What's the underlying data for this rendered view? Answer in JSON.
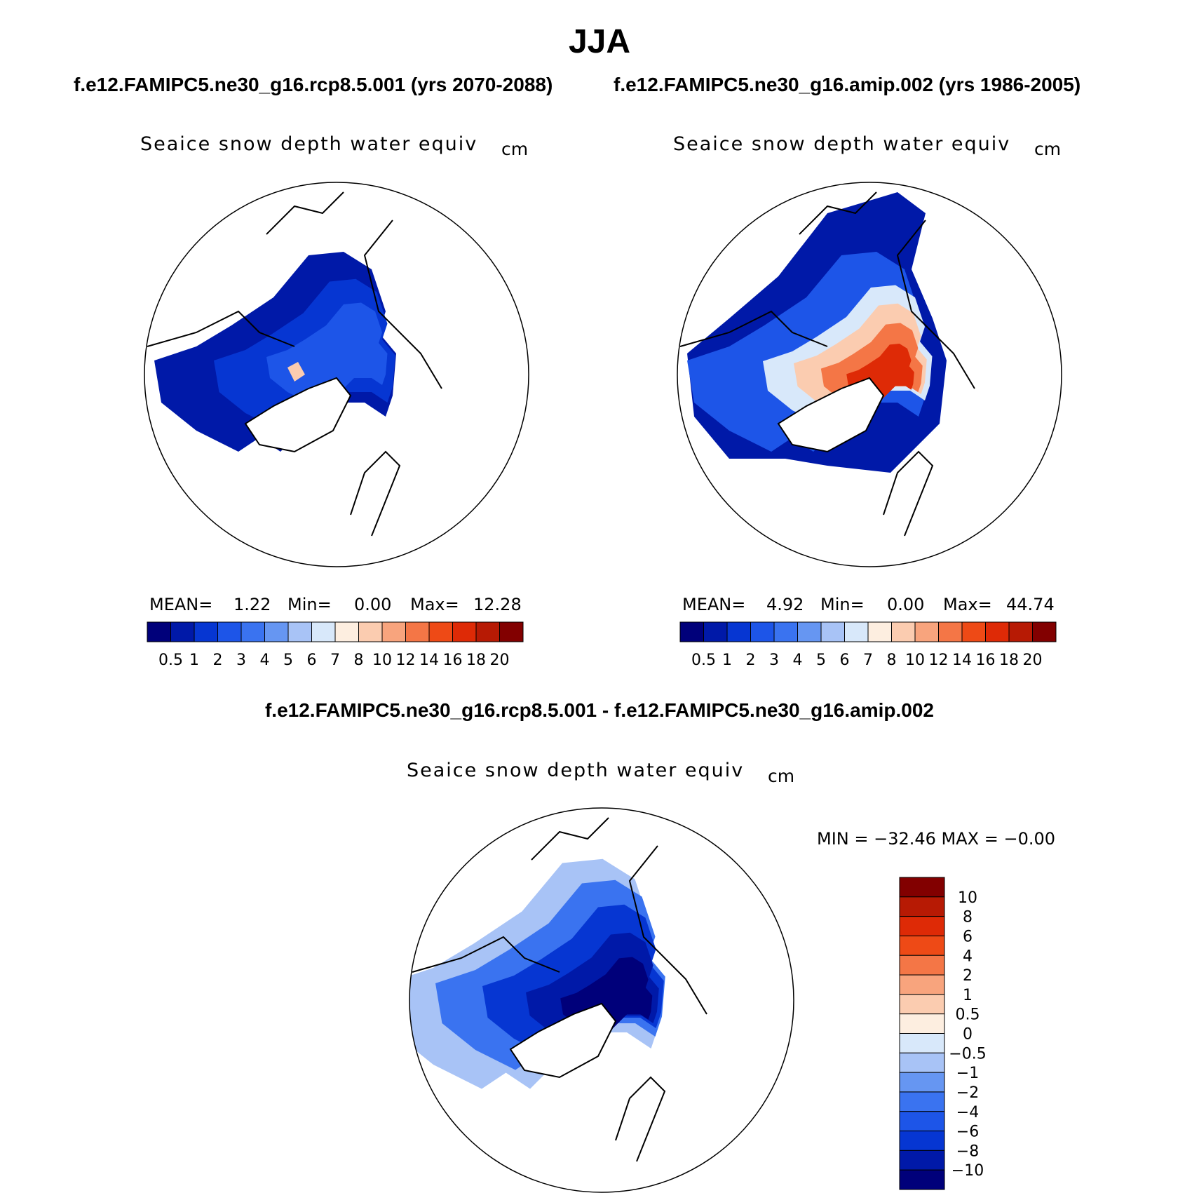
{
  "header": {
    "season": "JJA",
    "case_left": "f.e12.FAMIPC5.ne30_g16.rcp8.5.001 (yrs 2070-2088)",
    "case_right": "f.e12.FAMIPC5.ne30_g16.amip.002 (yrs 1986-2005)",
    "diff_title": "f.e12.FAMIPC5.ne30_g16.rcp8.5.001 - f.e12.FAMIPC5.ne30_g16.amip.002"
  },
  "panels": {
    "left": {
      "variable": "Seaice snow depth water equiv",
      "unit": "cm",
      "mean_label": "MEAN=",
      "mean": "1.22",
      "min_label": "Min=",
      "min": "0.00",
      "max_label": "Max=",
      "max": "12.28"
    },
    "right": {
      "variable": "Seaice snow depth water equiv",
      "unit": "cm",
      "mean_label": "MEAN=",
      "mean": "4.92",
      "min_label": "Min=",
      "min": "0.00",
      "max_label": "Max=",
      "max": "44.74"
    },
    "diff": {
      "variable": "Seaice snow depth water equiv",
      "unit": "cm",
      "minmax": "MIN = −32.46 MAX =  −0.00"
    }
  },
  "chart_data": [
    {
      "type": "heatmap",
      "title": "Seaice snow depth water equiv",
      "subtitle": "f.e12.FAMIPC5.ne30_g16.rcp8.5.001 (yrs 2070-2088)",
      "projection": "north-polar-stereographic",
      "units": "cm",
      "mean": 1.22,
      "min": 0.0,
      "max": 12.28,
      "colorbar_levels": [
        "0.5",
        "1",
        "2",
        "3",
        "4",
        "5",
        "6",
        "7",
        "8",
        "10",
        "12",
        "14",
        "16",
        "18",
        "20"
      ],
      "colorbar_colors": [
        "#00007a",
        "#0019a8",
        "#0636d2",
        "#1d55e8",
        "#3a73f0",
        "#6696f2",
        "#a8c3f6",
        "#d8e8fa",
        "#fdeee0",
        "#fbccb0",
        "#f8a47d",
        "#f47646",
        "#ee4a16",
        "#de2a06",
        "#b71a04",
        "#820000"
      ]
    },
    {
      "type": "heatmap",
      "title": "Seaice snow depth water equiv",
      "subtitle": "f.e12.FAMIPC5.ne30_g16.amip.002 (yrs 1986-2005)",
      "projection": "north-polar-stereographic",
      "units": "cm",
      "mean": 4.92,
      "min": 0.0,
      "max": 44.74,
      "colorbar_levels": [
        "0.5",
        "1",
        "2",
        "3",
        "4",
        "5",
        "6",
        "7",
        "8",
        "10",
        "12",
        "14",
        "16",
        "18",
        "20"
      ],
      "colorbar_colors": [
        "#00007a",
        "#0019a8",
        "#0636d2",
        "#1d55e8",
        "#3a73f0",
        "#6696f2",
        "#a8c3f6",
        "#d8e8fa",
        "#fdeee0",
        "#fbccb0",
        "#f8a47d",
        "#f47646",
        "#ee4a16",
        "#de2a06",
        "#b71a04",
        "#820000"
      ]
    },
    {
      "type": "heatmap",
      "title": "Seaice snow depth water equiv",
      "subtitle": "f.e12.FAMIPC5.ne30_g16.rcp8.5.001 - f.e12.FAMIPC5.ne30_g16.amip.002",
      "projection": "north-polar-stereographic",
      "units": "cm",
      "min": -32.46,
      "max": -0.0,
      "colorbar_levels": [
        "10",
        "8",
        "6",
        "4",
        "2",
        "1",
        "0.5",
        "0",
        "−0.5",
        "−1",
        "−2",
        "−4",
        "−6",
        "−8",
        "−10"
      ],
      "colorbar_colors": [
        "#820000",
        "#b71a04",
        "#de2a06",
        "#ee4a16",
        "#f47646",
        "#f8a47d",
        "#fbccb0",
        "#fdeee0",
        "#d8e8fa",
        "#a8c3f6",
        "#6696f2",
        "#3a73f0",
        "#1d55e8",
        "#0636d2",
        "#0019a8",
        "#00007a"
      ]
    }
  ]
}
